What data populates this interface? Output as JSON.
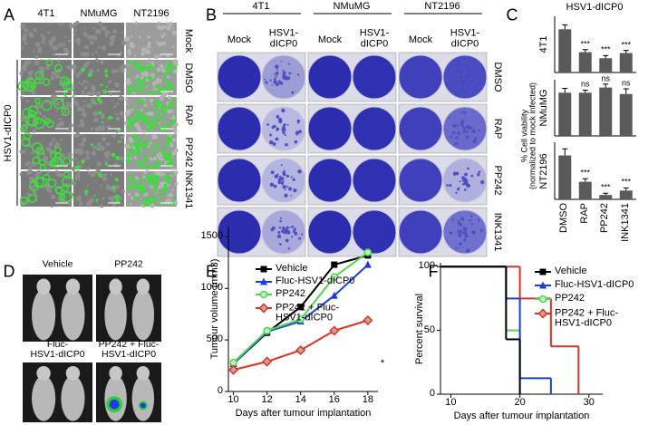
{
  "figure": {
    "A": {
      "label": "A",
      "columns": [
        "4T1",
        "NMuMG",
        "NT2196"
      ],
      "rows": [
        "Mock",
        "DMSO",
        "RAP",
        "PP242",
        "INK1341"
      ],
      "group": "HSV1-dICP0"
    },
    "B": {
      "label": "B",
      "groups": [
        "4T1",
        "NMuMG",
        "NT2196"
      ],
      "conditions": [
        "Mock",
        "HSV1-\ndICP0"
      ],
      "rows": [
        "DMSO",
        "RAP",
        "PP242",
        "INK1341"
      ]
    },
    "C": {
      "label": "C",
      "title": "HSV1-dICP0",
      "ylabel": "% Cell viability\n(normalized to mock infected)"
    },
    "D": {
      "label": "D",
      "images": [
        "Vehicle",
        "PP242",
        "Fluc-\nHSV1-dICP0",
        "PP242 + Fluc-\nHSV1-dICP0"
      ]
    },
    "E": {
      "label": "E"
    },
    "F": {
      "label": "F"
    }
  },
  "chart_data": [
    {
      "type": "bar",
      "ylabel": "4T1",
      "categories": [
        null,
        null,
        null,
        null
      ],
      "values": [
        100,
        47,
        33,
        45
      ],
      "errors": [
        10,
        6,
        6,
        6
      ],
      "annotations": [
        null,
        "***",
        "***",
        "***"
      ],
      "ylim": [
        0,
        130
      ],
      "color": "#5a5a5a"
    },
    {
      "type": "bar",
      "ylabel": "NMuMG",
      "categories": [
        null,
        null,
        null,
        null
      ],
      "values": [
        100,
        100,
        112,
        97
      ],
      "errors": [
        10,
        6,
        8,
        12
      ],
      "annotations": [
        null,
        "ns",
        "ns",
        "ns"
      ],
      "ylim": [
        0,
        130
      ],
      "color": "#5a5a5a"
    },
    {
      "type": "bar",
      "ylabel": "NT2196",
      "categories": [
        "DMSO",
        "RAP",
        "PP242",
        "INK1341"
      ],
      "values": [
        100,
        40,
        10,
        20
      ],
      "errors": [
        15,
        7,
        4,
        6
      ],
      "annotations": [
        null,
        "***",
        "***",
        "***"
      ],
      "ylim": [
        0,
        130
      ],
      "color": "#5a5a5a"
    },
    {
      "type": "line",
      "xlabel": "Days after tumour implantation",
      "ylabel": "Tumour volume (mm3)",
      "annotation": "*",
      "x": [
        10,
        12,
        14,
        16,
        18
      ],
      "xlim": [
        9.7,
        18.6
      ],
      "ylim": [
        0,
        1600
      ],
      "xticks": [
        10,
        12,
        14,
        16,
        18
      ],
      "yticks": [
        0,
        500,
        1000,
        1500
      ],
      "series": [
        {
          "name": "Vehicle",
          "color": "#000000",
          "marker": "square",
          "values": [
            270,
            570,
            820,
            1230,
            1320
          ]
        },
        {
          "name": "Fluc-HSV1-dICP0",
          "color": "#1a3fd6",
          "marker": "triangle",
          "values": [
            270,
            580,
            680,
            930,
            1230
          ]
        },
        {
          "name": "PP242",
          "color": "#4fd84f",
          "marker": "circle",
          "values": [
            280,
            590,
            700,
            1110,
            1350
          ]
        },
        {
          "name": "PP242 + Fluc-\nHSV1-dICP0",
          "color": "#e0301e",
          "marker": "diamond",
          "values": [
            210,
            290,
            400,
            590,
            690
          ]
        }
      ]
    },
    {
      "type": "step",
      "xlabel": "Days after tumour implantation",
      "ylabel": "Percent survival",
      "xlim": [
        8.5,
        32
      ],
      "ylim": [
        0,
        103
      ],
      "xticks": [
        10,
        20,
        30
      ],
      "yticks": [
        0,
        50,
        100
      ],
      "series": [
        {
          "name": "Vehicle",
          "color": "#000000",
          "marker": "square",
          "x": [
            8.5,
            18,
            20
          ],
          "values": [
            100,
            43,
            0
          ]
        },
        {
          "name": "Fluc-HSV1-dICP0",
          "color": "#1a3fd6",
          "marker": "triangle",
          "x": [
            8.5,
            18,
            20,
            24.5
          ],
          "values": [
            100,
            75,
            12.5,
            0
          ]
        },
        {
          "name": "PP242",
          "color": "#4fd84f",
          "marker": "circle",
          "x": [
            8.5,
            18,
            20
          ],
          "values": [
            100,
            50,
            0
          ]
        },
        {
          "name": "PP242 + Fluc-\nHSV1-dICP0",
          "color": "#e0301e",
          "marker": "diamond",
          "x": [
            8.5,
            20,
            24.5,
            28.5
          ],
          "values": [
            100,
            75,
            37.5,
            0
          ]
        }
      ]
    }
  ]
}
